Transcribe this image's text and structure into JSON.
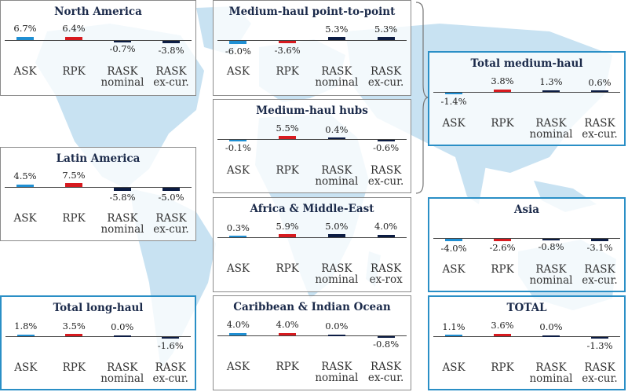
{
  "colors": {
    "ASK": "#1f8fd3",
    "RPK": "#d71a1f",
    "RASK_nominal": "#0c1c43",
    "RASK_excur": "#0c1c43",
    "map": "#c8e2f2"
  },
  "chart_data": [
    {
      "type": "bar",
      "title": "North America",
      "categories": [
        "ASK",
        "RPK",
        "RASK nominal",
        "RASK ex-cur."
      ],
      "values": [
        6.7,
        6.4,
        -0.7,
        -3.8
      ],
      "value_labels": [
        "6.7%",
        "6.4%",
        "-0.7%",
        "-3.8%"
      ]
    },
    {
      "type": "bar",
      "title": "Medium-haul point-to-point",
      "categories": [
        "ASK",
        "RPK",
        "RASK nominal",
        "RASK ex-cur."
      ],
      "values": [
        -6.0,
        -3.6,
        5.3,
        5.3
      ],
      "value_labels": [
        "-6.0%",
        "-3.6%",
        "5.3%",
        "5.3%"
      ]
    },
    {
      "type": "bar",
      "title": "Total medium-haul",
      "categories": [
        "ASK",
        "RPK",
        "RASK nominal",
        "RASK ex-cur."
      ],
      "values": [
        -1.4,
        3.8,
        1.3,
        0.6
      ],
      "value_labels": [
        "-1.4%",
        "3.8%",
        "1.3%",
        "0.6%"
      ]
    },
    {
      "type": "bar",
      "title": "Medium-haul hubs",
      "categories": [
        "ASK",
        "RPK",
        "RASK nominal",
        "RASK ex-cur."
      ],
      "values": [
        -0.1,
        5.5,
        0.4,
        -0.6
      ],
      "value_labels": [
        "-0.1%",
        "5.5%",
        "0.4%",
        "-0.6%"
      ]
    },
    {
      "type": "bar",
      "title": "Latin America",
      "categories": [
        "ASK",
        "RPK",
        "RASK nominal",
        "RASK ex-cur."
      ],
      "values": [
        4.5,
        7.5,
        -5.8,
        -5.0
      ],
      "value_labels": [
        "4.5%",
        "7.5%",
        "-5.8%",
        "-5.0%"
      ]
    },
    {
      "type": "bar",
      "title": "Africa & Middle-East",
      "categories": [
        "ASK",
        "RPK",
        "RASK nominal",
        "RASK ex-rox"
      ],
      "values": [
        0.3,
        5.9,
        5.0,
        4.0
      ],
      "value_labels": [
        "0.3%",
        "5.9%",
        "5.0%",
        "4.0%"
      ]
    },
    {
      "type": "bar",
      "title": "Asia",
      "categories": [
        "ASK",
        "RPK",
        "RASK nominal",
        "RASK ex-cur."
      ],
      "values": [
        -4.0,
        -2.6,
        -0.8,
        -3.1
      ],
      "value_labels": [
        "-4.0%",
        "-2.6%",
        "-0.8%",
        "-3.1%"
      ]
    },
    {
      "type": "bar",
      "title": "Total long-haul",
      "categories": [
        "ASK",
        "RPK",
        "RASK nominal",
        "RASK ex-cur."
      ],
      "values": [
        1.8,
        3.5,
        0.0,
        -1.6
      ],
      "value_labels": [
        "1.8%",
        "3.5%",
        "0.0%",
        "-1.6%"
      ]
    },
    {
      "type": "bar",
      "title": "Caribbean & Indian Ocean",
      "categories": [
        "ASK",
        "RPK",
        "RASK nominal",
        "RASK ex-cur."
      ],
      "values": [
        4.0,
        4.0,
        0.0,
        -0.8
      ],
      "value_labels": [
        "4.0%",
        "4.0%",
        "0.0%",
        "-0.8%"
      ]
    },
    {
      "type": "bar",
      "title": "TOTAL",
      "categories": [
        "ASK",
        "RPK",
        "RASK nominal",
        "RASK ex-cur."
      ],
      "values": [
        1.1,
        3.6,
        0.0,
        -1.3
      ],
      "value_labels": [
        "1.1%",
        "3.6%",
        "0.0%",
        "-1.3%"
      ]
    }
  ]
}
